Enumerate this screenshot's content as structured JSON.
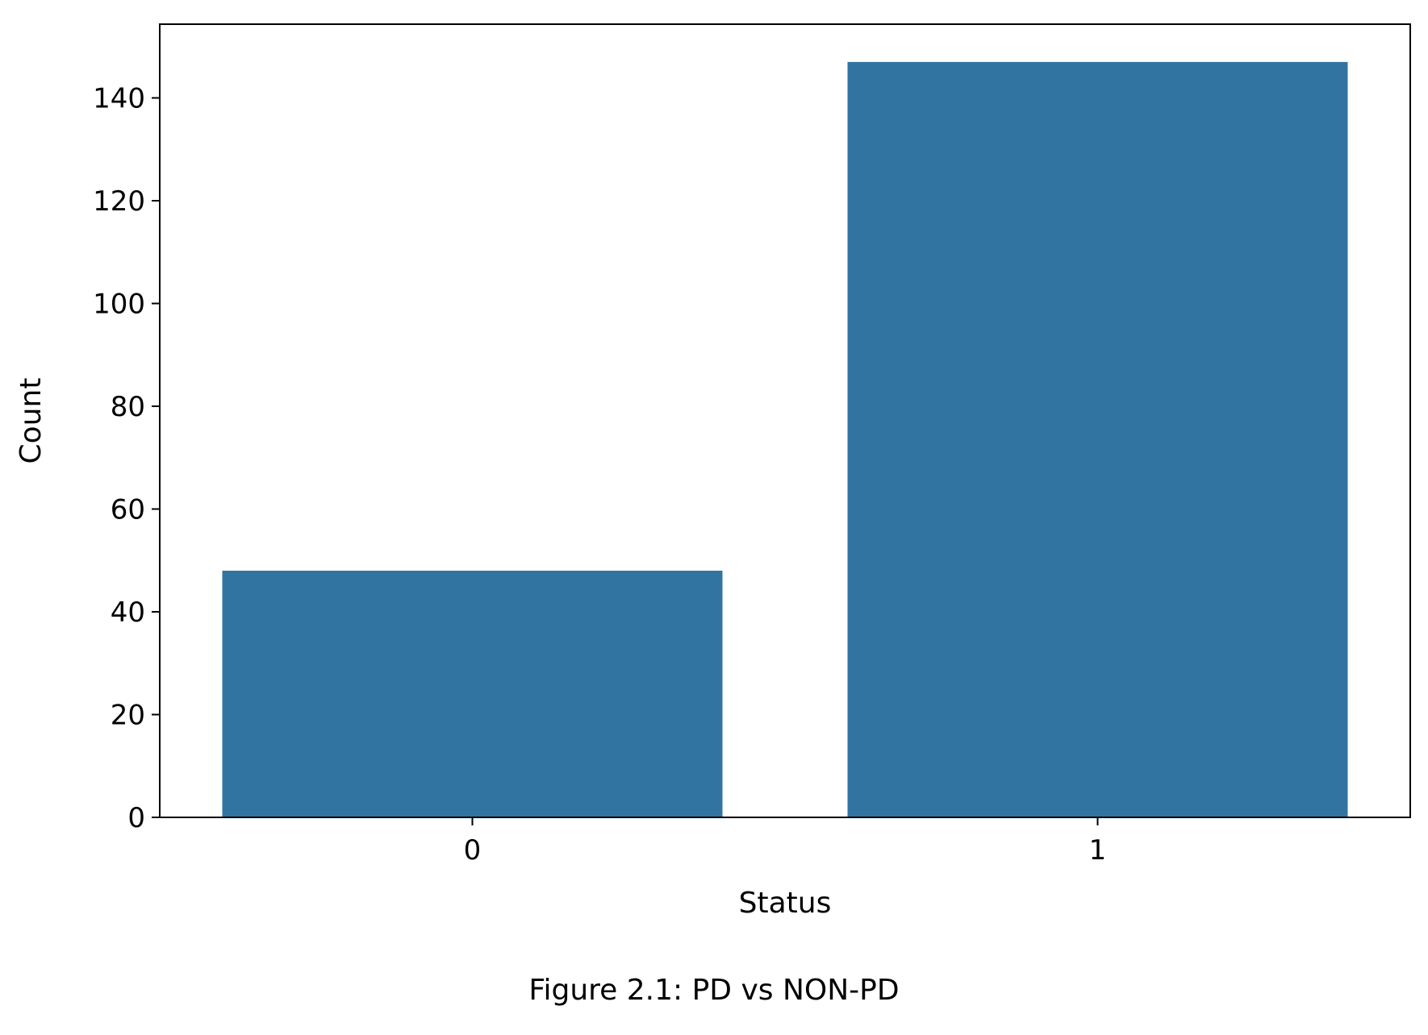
{
  "caption": "Figure 2.1: PD vs NON-PD",
  "colors": {
    "bar": "#3274a1",
    "axis": "#000000",
    "background": "#ffffff"
  },
  "chart_data": {
    "type": "bar",
    "categories": [
      "0",
      "1"
    ],
    "values": [
      48,
      147
    ],
    "title": "",
    "xlabel": "Status",
    "ylabel": "Count",
    "ylim": [
      0,
      154.35
    ],
    "yticks": [
      0,
      20,
      40,
      60,
      80,
      100,
      120,
      140
    ],
    "grid": false,
    "legend": "none"
  }
}
